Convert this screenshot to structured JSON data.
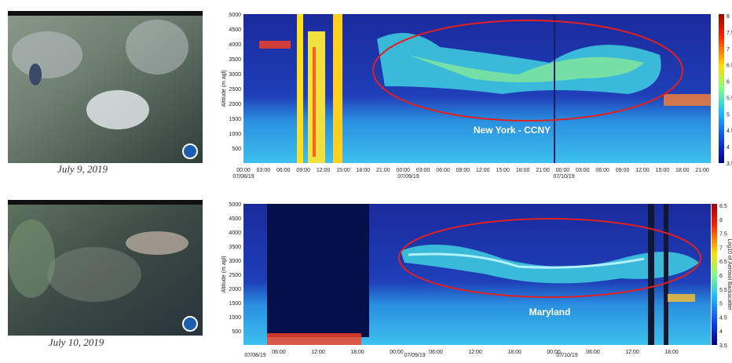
{
  "panels": [
    {
      "image_caption": "July 9, 2019",
      "y_axis_label": "Altitude (m agl)",
      "y_ticks": [
        "5000",
        "4500",
        "4000",
        "3500",
        "3000",
        "2500",
        "2000",
        "1500",
        "1000",
        "500"
      ],
      "x_ticks": [
        "00:00",
        "03:00",
        "06:00",
        "09:00",
        "12:00",
        "15:00",
        "18:00",
        "21:00",
        "00:00",
        "03:00",
        "06:00",
        "09:00",
        "12:00",
        "15:00",
        "18:00",
        "21:00",
        "00:00",
        "03:00",
        "06:00",
        "09:00",
        "12:00",
        "15:00",
        "18:00",
        "21:00"
      ],
      "dates": [
        "07/08/19",
        "07/09/19",
        "07/10/19"
      ],
      "colorbar_ticks": [
        "8",
        "7.5",
        "7",
        "6.5",
        "6",
        "5.5",
        "5",
        "4.5",
        "4",
        "3.5"
      ],
      "annotation": "New York - CCNY"
    },
    {
      "image_caption": "July 10, 2019",
      "y_axis_label": "Altitude (m agl)",
      "y_ticks": [
        "5000",
        "4500",
        "4000",
        "3500",
        "3000",
        "2500",
        "2000",
        "1500",
        "1000",
        "500"
      ],
      "x_ticks": [
        "06:00",
        "12:00",
        "18:00",
        "00:00",
        "06:00",
        "12:00",
        "18:00",
        "00:00",
        "06:00",
        "12:00",
        "18:00"
      ],
      "dates": [
        "07/08/19",
        "07/09/19",
        "07/10/19"
      ],
      "colorbar_ticks": [
        "8.5",
        "8",
        "7.5",
        "7",
        "6.5",
        "6",
        "5.5",
        "5",
        "4.5",
        "4",
        "3.5"
      ],
      "colorbar_label": "Log10 of Aerosol Backscatter",
      "annotation": "Maryland"
    }
  ]
}
